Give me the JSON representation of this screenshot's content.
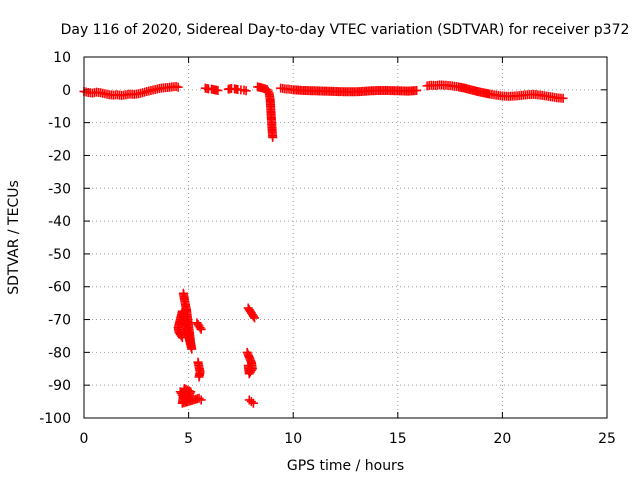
{
  "chart_data": {
    "type": "scatter",
    "title": "Day 116 of 2020, Sidereal Day-to-day VTEC variation (SDTVAR) for receiver p372",
    "xlabel": "GPS time / hours",
    "ylabel": "SDTVAR / TECUs",
    "xlim": [
      0,
      25
    ],
    "ylim": [
      -100,
      10
    ],
    "xticks": [
      0,
      5,
      10,
      15,
      20,
      25
    ],
    "yticks": [
      10,
      0,
      -10,
      -20,
      -30,
      -40,
      -50,
      -60,
      -70,
      -80,
      -90,
      -100
    ],
    "grid": true,
    "marker": "plus",
    "color": "#ff0000",
    "series": [
      {
        "name": "SDTVAR",
        "segments": [
          [
            [
              0.0,
              -0.5
            ],
            [
              0.2,
              -0.8
            ],
            [
              0.4,
              -1.0
            ],
            [
              0.6,
              -0.7
            ],
            [
              0.8,
              -0.9
            ],
            [
              1.0,
              -1.2
            ],
            [
              1.2,
              -1.5
            ],
            [
              1.4,
              -1.6
            ],
            [
              1.6,
              -1.5
            ],
            [
              1.8,
              -1.7
            ],
            [
              2.0,
              -1.5
            ],
            [
              2.2,
              -1.3
            ],
            [
              2.4,
              -1.4
            ],
            [
              2.6,
              -1.2
            ],
            [
              2.8,
              -0.9
            ],
            [
              3.0,
              -0.5
            ],
            [
              3.2,
              -0.2
            ],
            [
              3.4,
              0.1
            ],
            [
              3.6,
              0.4
            ],
            [
              3.8,
              0.6
            ],
            [
              4.0,
              0.7
            ],
            [
              4.2,
              0.9
            ],
            [
              4.4,
              1.0
            ],
            [
              4.5,
              0.8
            ]
          ],
          [
            [
              5.8,
              0.5
            ],
            [
              5.95,
              0.3
            ],
            [
              6.1,
              0.2
            ],
            [
              6.25,
              0.0
            ],
            [
              6.4,
              -0.2
            ]
          ],
          [
            [
              6.9,
              0.2
            ],
            [
              7.05,
              0.4
            ],
            [
              7.2,
              0.3
            ],
            [
              7.35,
              0.1
            ],
            [
              7.5,
              0.0
            ],
            [
              7.65,
              -0.1
            ],
            [
              7.75,
              -0.3
            ]
          ],
          [
            [
              8.3,
              0.9
            ],
            [
              8.45,
              0.7
            ],
            [
              8.6,
              0.4
            ],
            [
              8.75,
              0.1
            ],
            [
              8.85,
              -1.0
            ],
            [
              8.9,
              -3.0
            ],
            [
              8.92,
              -5.0
            ],
            [
              8.94,
              -7.0
            ],
            [
              8.96,
              -9.0
            ],
            [
              8.98,
              -11.0
            ],
            [
              9.0,
              -13.0
            ],
            [
              9.02,
              -14.5
            ]
          ],
          [
            [
              9.4,
              0.5
            ],
            [
              9.6,
              0.3
            ],
            [
              9.8,
              0.2
            ],
            [
              10.0,
              0.0
            ],
            [
              10.5,
              -0.2
            ],
            [
              11.0,
              -0.3
            ],
            [
              11.5,
              -0.4
            ],
            [
              12.0,
              -0.5
            ],
            [
              12.5,
              -0.6
            ],
            [
              13.0,
              -0.6
            ],
            [
              13.5,
              -0.4
            ],
            [
              14.0,
              -0.2
            ],
            [
              14.5,
              -0.2
            ],
            [
              15.0,
              -0.3
            ],
            [
              15.5,
              -0.4
            ],
            [
              15.9,
              -0.2
            ]
          ],
          [
            [
              16.4,
              1.2
            ],
            [
              16.6,
              1.4
            ],
            [
              16.8,
              1.3
            ],
            [
              17.0,
              1.5
            ],
            [
              17.3,
              1.4
            ],
            [
              17.6,
              1.2
            ],
            [
              17.9,
              0.9
            ],
            [
              18.2,
              0.5
            ],
            [
              18.5,
              0.0
            ],
            [
              18.8,
              -0.5
            ],
            [
              19.1,
              -0.9
            ],
            [
              19.4,
              -1.3
            ],
            [
              19.7,
              -1.6
            ],
            [
              20.0,
              -1.9
            ],
            [
              20.3,
              -2.0
            ],
            [
              20.6,
              -1.9
            ],
            [
              20.9,
              -1.7
            ],
            [
              21.2,
              -1.5
            ],
            [
              21.5,
              -1.4
            ],
            [
              21.8,
              -1.6
            ],
            [
              22.1,
              -1.9
            ],
            [
              22.4,
              -2.2
            ],
            [
              22.7,
              -2.5
            ],
            [
              22.9,
              -2.6
            ]
          ],
          [
            [
              4.75,
              -62.0
            ],
            [
              4.82,
              -64.5
            ],
            [
              4.9,
              -67.0
            ],
            [
              4.95,
              -69.5
            ],
            [
              5.0,
              -72.0
            ],
            [
              5.05,
              -74.5
            ],
            [
              5.1,
              -77.0
            ],
            [
              5.15,
              -79.0
            ],
            [
              4.7,
              -67.5
            ],
            [
              4.6,
              -70.0
            ],
            [
              4.5,
              -72.5
            ],
            [
              4.55,
              -74.0
            ],
            [
              4.7,
              -75.5
            ]
          ],
          [
            [
              5.4,
              -71.0
            ],
            [
              5.5,
              -72.0
            ],
            [
              5.6,
              -73.0
            ]
          ],
          [
            [
              5.45,
              -83.0
            ],
            [
              5.5,
              -84.5
            ],
            [
              5.55,
              -86.0
            ],
            [
              5.5,
              -87.5
            ]
          ],
          [
            [
              4.6,
              -92.0
            ],
            [
              4.7,
              -93.0
            ],
            [
              4.8,
              -94.0
            ],
            [
              4.9,
              -95.0
            ],
            [
              5.0,
              -93.5
            ],
            [
              5.1,
              -92.0
            ],
            [
              4.8,
              -91.0
            ],
            [
              4.7,
              -95.5
            ],
            [
              5.5,
              -94.0
            ],
            [
              5.6,
              -94.5
            ]
          ],
          [
            [
              7.85,
              -66.5
            ],
            [
              7.95,
              -67.5
            ],
            [
              8.05,
              -68.5
            ],
            [
              8.15,
              -69.5
            ]
          ],
          [
            [
              7.8,
              -80.0
            ],
            [
              7.9,
              -81.5
            ],
            [
              8.0,
              -83.0
            ],
            [
              8.05,
              -85.0
            ],
            [
              7.9,
              -86.5
            ],
            [
              7.85,
              -84.0
            ]
          ],
          [
            [
              7.9,
              -94.5
            ],
            [
              8.0,
              -95.0
            ],
            [
              8.1,
              -95.5
            ]
          ]
        ]
      }
    ]
  }
}
